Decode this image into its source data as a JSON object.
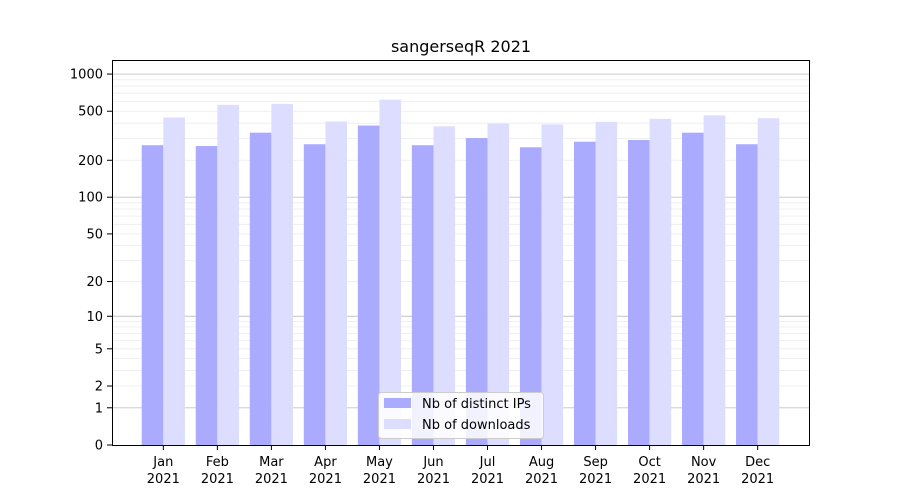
{
  "chart_data": {
    "type": "bar",
    "title": "sangerseqR 2021",
    "xlabel": "",
    "ylabel": "",
    "y_scale": "symlog",
    "ylim": [
      0,
      1300
    ],
    "y_ticks": [
      0,
      1,
      2,
      5,
      10,
      20,
      50,
      100,
      200,
      500,
      1000
    ],
    "y_tick_labels": [
      "0",
      "1",
      "2",
      "5",
      "10",
      "20",
      "50",
      "100",
      "200",
      "500",
      "1000"
    ],
    "grid": true,
    "legend_position": "bottom-center",
    "categories": [
      [
        "Jan",
        "2021"
      ],
      [
        "Feb",
        "2021"
      ],
      [
        "Mar",
        "2021"
      ],
      [
        "Apr",
        "2021"
      ],
      [
        "May",
        "2021"
      ],
      [
        "Jun",
        "2021"
      ],
      [
        "Jul",
        "2021"
      ],
      [
        "Aug",
        "2021"
      ],
      [
        "Sep",
        "2021"
      ],
      [
        "Oct",
        "2021"
      ],
      [
        "Nov",
        "2021"
      ],
      [
        "Dec",
        "2021"
      ]
    ],
    "series": [
      {
        "name": "Nb of distinct IPs",
        "color": "#aaaaff",
        "values": [
          265,
          261,
          335,
          270,
          383,
          265,
          303,
          255,
          283,
          292,
          335,
          270
        ]
      },
      {
        "name": "Nb of downloads",
        "color": "#ddddff",
        "values": [
          445,
          563,
          573,
          413,
          620,
          377,
          397,
          391,
          410,
          434,
          463,
          439
        ]
      }
    ]
  }
}
